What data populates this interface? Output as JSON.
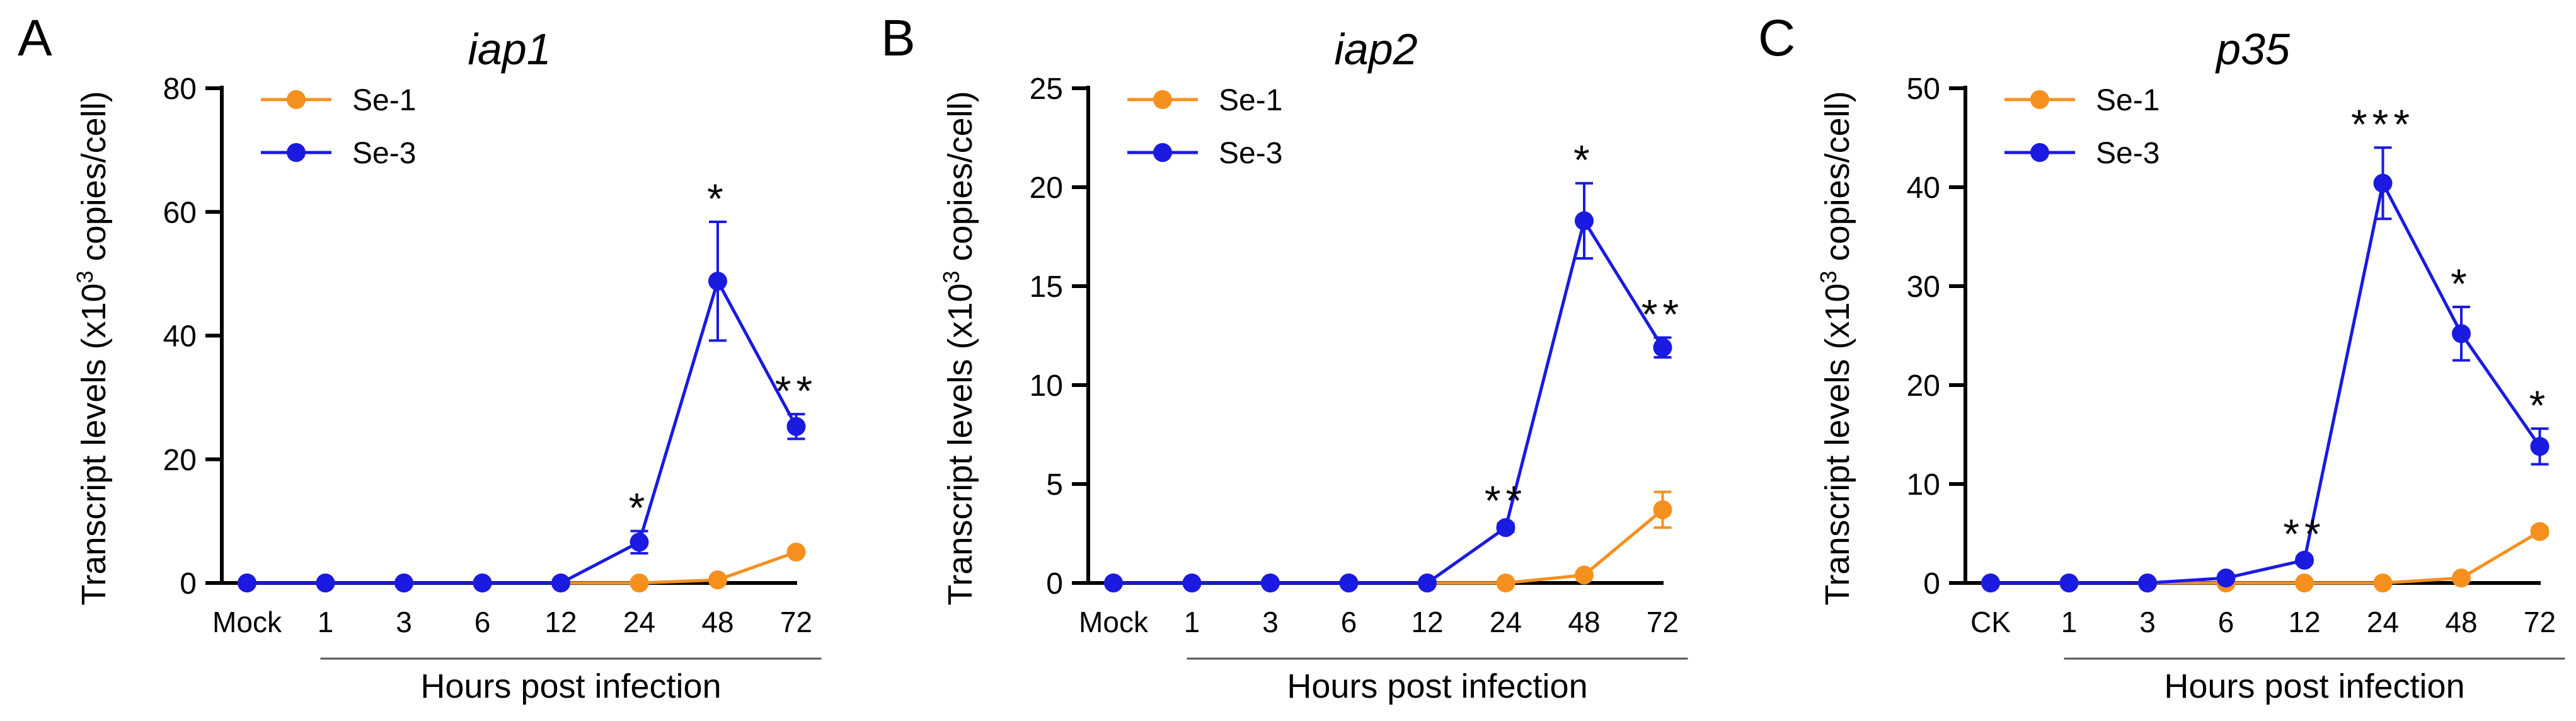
{
  "colors": {
    "se1": "#f5901e",
    "se3": "#1a1ae0",
    "axis": "#000000",
    "bracket": "#555555"
  },
  "chart_data": [
    {
      "type": "line",
      "panel": "A",
      "title": "iap1",
      "ylabel_prefix": "Transcript levels (x10",
      "ylabel_sup": "3",
      "ylabel_suffix": " copies/cell)",
      "xlabel": "Hours post infection",
      "categories": [
        "Mock",
        "1",
        "3",
        "6",
        "12",
        "24",
        "48",
        "72"
      ],
      "bracket_from_index": 1,
      "ylim": [
        0,
        80
      ],
      "yticks": [
        0,
        20,
        40,
        60,
        80
      ],
      "series": [
        {
          "name": "Se-1",
          "color_key": "se1",
          "values": [
            0,
            0,
            0,
            0,
            0,
            0,
            0.5,
            5.0
          ],
          "errors": [
            0,
            0,
            0,
            0,
            0,
            0,
            0.2,
            0.5
          ]
        },
        {
          "name": "Se-3",
          "color_key": "se3",
          "values": [
            0,
            0,
            0,
            0,
            0,
            6.6,
            48.8,
            25.3
          ],
          "errors": [
            0,
            0,
            0,
            0,
            0,
            1.8,
            9.6,
            2.0
          ]
        }
      ],
      "significance": [
        "",
        "",
        "",
        "",
        "",
        "*",
        "*",
        "**"
      ]
    },
    {
      "type": "line",
      "panel": "B",
      "title": "iap2",
      "ylabel_prefix": "Transcript levels (x10",
      "ylabel_sup": "3",
      "ylabel_suffix": " copies/cell)",
      "xlabel": "Hours post infection",
      "categories": [
        "Mock",
        "1",
        "3",
        "6",
        "12",
        "24",
        "48",
        "72"
      ],
      "bracket_from_index": 1,
      "ylim": [
        0,
        25
      ],
      "yticks": [
        0,
        5,
        10,
        15,
        20,
        25
      ],
      "series": [
        {
          "name": "Se-1",
          "color_key": "se1",
          "values": [
            0,
            0,
            0,
            0,
            0,
            0,
            0.4,
            3.7
          ],
          "errors": [
            0,
            0,
            0,
            0,
            0,
            0,
            0.1,
            0.9
          ]
        },
        {
          "name": "Se-3",
          "color_key": "se3",
          "values": [
            0,
            0,
            0,
            0,
            0,
            2.8,
            18.3,
            11.9
          ],
          "errors": [
            0,
            0,
            0,
            0,
            0,
            0.2,
            1.9,
            0.5
          ]
        }
      ],
      "significance": [
        "",
        "",
        "",
        "",
        "",
        "**",
        "*",
        "**"
      ]
    },
    {
      "type": "line",
      "panel": "C",
      "title": "p35",
      "ylabel_prefix": "Transcript levels (x10",
      "ylabel_sup": "3",
      "ylabel_suffix": " copies/cell)",
      "xlabel": "Hours post infection",
      "categories": [
        "CK",
        "1",
        "3",
        "6",
        "12",
        "24",
        "48",
        "72"
      ],
      "bracket_from_index": 1,
      "ylim": [
        0,
        50
      ],
      "yticks": [
        0,
        10,
        20,
        30,
        40,
        50
      ],
      "series": [
        {
          "name": "Se-1",
          "color_key": "se1",
          "values": [
            0,
            0,
            0,
            0,
            0,
            0,
            0.5,
            5.2
          ],
          "errors": [
            0,
            0,
            0,
            0,
            0,
            0,
            0.2,
            0.4
          ]
        },
        {
          "name": "Se-3",
          "color_key": "se3",
          "values": [
            0,
            0,
            0,
            0.5,
            2.3,
            40.4,
            25.2,
            13.8
          ],
          "errors": [
            0,
            0,
            0,
            0.2,
            0.3,
            3.6,
            2.7,
            1.8
          ]
        }
      ],
      "significance": [
        "",
        "",
        "",
        "",
        "**",
        "***",
        "*",
        "*"
      ]
    }
  ]
}
